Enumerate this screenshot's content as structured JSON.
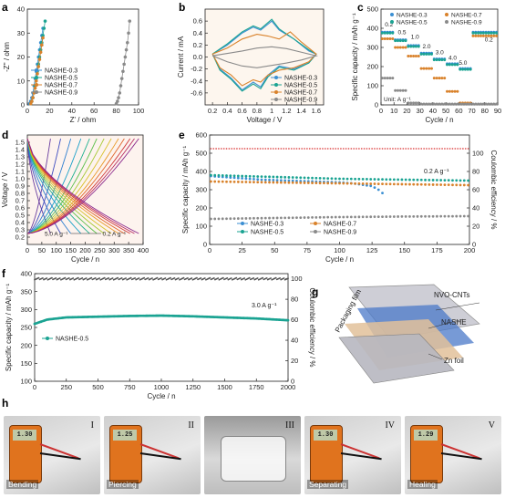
{
  "panel_letters": [
    "a",
    "b",
    "c",
    "d",
    "e",
    "f",
    "g",
    "h"
  ],
  "colors": {
    "s03": "#3b8fd3",
    "s05": "#1aa392",
    "s07": "#d9822b",
    "s09": "#8a8a8a",
    "ce": "#e05555"
  },
  "chart_data": [
    {
      "id": "a",
      "type": "scatter",
      "xlabel": "Z' / ohm",
      "ylabel": "-Z'' / ohm",
      "xlim": [
        0,
        100
      ],
      "ylim": [
        0,
        40
      ],
      "xticks": [
        0,
        20,
        40,
        60,
        80,
        100
      ],
      "yticks": [
        0,
        10,
        20,
        30,
        40
      ],
      "legend": [
        "NASHE-0.3",
        "NASHE-0.5",
        "NASHE-0.7",
        "NASHE-0.9"
      ],
      "series": [
        {
          "name": "NASHE-0.3",
          "x": [
            2,
            3,
            4,
            5,
            6,
            7,
            8,
            9,
            10,
            11,
            12,
            13,
            14
          ],
          "y": [
            0.5,
            1.5,
            3,
            5,
            8,
            11,
            14,
            17,
            20,
            23,
            26,
            29,
            32
          ]
        },
        {
          "name": "NASHE-0.5",
          "x": [
            3,
            4,
            5,
            6,
            7,
            8,
            9,
            10,
            11,
            12,
            13,
            14,
            15,
            16
          ],
          "y": [
            0.5,
            1.5,
            3,
            5,
            8,
            11,
            14,
            17,
            20,
            23,
            26,
            29,
            32,
            35
          ]
        },
        {
          "name": "NASHE-0.7",
          "x": [
            3,
            4,
            5,
            6,
            7,
            8,
            9,
            10,
            11,
            12,
            13,
            14
          ],
          "y": [
            0.5,
            1.5,
            3,
            5,
            7,
            10,
            13,
            16,
            19,
            22,
            25,
            28
          ]
        },
        {
          "name": "NASHE-0.9",
          "x": [
            80,
            81,
            82,
            83,
            84,
            85,
            86,
            87,
            88,
            89,
            90,
            91,
            92
          ],
          "y": [
            0.5,
            1.5,
            3,
            5,
            8,
            11,
            14,
            17,
            20,
            23,
            26,
            30,
            35
          ]
        }
      ]
    },
    {
      "id": "b",
      "type": "line",
      "xlabel": "Voltage / V",
      "ylabel": "Current / mA",
      "xlim": [
        0.1,
        1.7
      ],
      "ylim": [
        -0.8,
        0.8
      ],
      "xticks": [
        0.2,
        0.4,
        0.6,
        0.8,
        1.0,
        1.2,
        1.4,
        1.6
      ],
      "yticks": [
        -0.6,
        -0.4,
        -0.2,
        0.0,
        0.2,
        0.4,
        0.6
      ],
      "legend": [
        "NASHE-0.3",
        "NASHE-0.5",
        "NASHE-0.7",
        "NASHE-0.9"
      ],
      "series": [
        {
          "name": "NASHE-0.3",
          "x": [
            0.2,
            0.4,
            0.6,
            0.75,
            0.85,
            1.0,
            1.1,
            1.3,
            1.5,
            1.6,
            1.5,
            1.3,
            1.1,
            0.95,
            0.85,
            0.75,
            0.6,
            0.45,
            0.3,
            0.2
          ],
          "y": [
            0.05,
            0.2,
            0.4,
            0.5,
            0.45,
            0.6,
            0.45,
            0.3,
            0.1,
            0.05,
            -0.1,
            -0.2,
            -0.15,
            -0.3,
            -0.5,
            -0.42,
            -0.55,
            -0.35,
            -0.2,
            0.05
          ]
        },
        {
          "name": "NASHE-0.5",
          "x": [
            0.2,
            0.4,
            0.6,
            0.75,
            0.85,
            1.0,
            1.1,
            1.3,
            1.5,
            1.6,
            1.5,
            1.3,
            1.1,
            0.95,
            0.85,
            0.75,
            0.6,
            0.45,
            0.3,
            0.2
          ],
          "y": [
            0.05,
            0.22,
            0.42,
            0.52,
            0.47,
            0.63,
            0.47,
            0.3,
            0.12,
            0.05,
            -0.1,
            -0.22,
            -0.17,
            -0.33,
            -0.53,
            -0.45,
            -0.57,
            -0.37,
            -0.22,
            0.05
          ]
        },
        {
          "name": "NASHE-0.7",
          "x": [
            0.2,
            0.4,
            0.6,
            0.8,
            0.95,
            1.1,
            1.25,
            1.4,
            1.55,
            1.6,
            1.5,
            1.3,
            1.1,
            0.95,
            0.85,
            0.75,
            0.6,
            0.45,
            0.3,
            0.2
          ],
          "y": [
            0.05,
            0.15,
            0.3,
            0.38,
            0.35,
            0.3,
            0.42,
            0.25,
            0.1,
            0.05,
            -0.08,
            -0.18,
            -0.22,
            -0.3,
            -0.42,
            -0.38,
            -0.48,
            -0.3,
            -0.18,
            0.05
          ]
        },
        {
          "name": "NASHE-0.9",
          "x": [
            0.2,
            0.4,
            0.6,
            0.8,
            1.0,
            1.2,
            1.4,
            1.6,
            1.4,
            1.2,
            1.0,
            0.8,
            0.6,
            0.4,
            0.2
          ],
          "y": [
            0.02,
            0.06,
            0.1,
            0.15,
            0.17,
            0.14,
            0.08,
            0.02,
            -0.05,
            -0.1,
            -0.14,
            -0.18,
            -0.15,
            -0.08,
            0.02
          ]
        }
      ]
    },
    {
      "id": "c",
      "type": "scatter",
      "xlabel": "Cycle / n",
      "ylabel": "Specific capacity / mAh g⁻¹",
      "xlim": [
        0,
        90
      ],
      "ylim": [
        0,
        500
      ],
      "xticks": [
        0,
        10,
        20,
        30,
        40,
        50,
        60,
        70,
        80,
        90
      ],
      "yticks": [
        0,
        100,
        200,
        300,
        400,
        500
      ],
      "annotations": [
        "0.2",
        "0.5",
        "1.0",
        "2.0",
        "3.0",
        "4.0",
        "5.0",
        "0.2",
        "Unit: A g⁻¹"
      ],
      "legend": [
        "NASHE-0.3",
        "NASHE-0.5",
        "NASHE-0.7",
        "NASHE-0.9"
      ],
      "series": [
        {
          "name": "NASHE-0.3",
          "segments": [
            [
              1,
              10,
              380
            ],
            [
              11,
              20,
              340
            ],
            [
              21,
              30,
              310
            ],
            [
              31,
              40,
              270
            ],
            [
              41,
              50,
              240
            ],
            [
              51,
              60,
              215
            ],
            [
              61,
              70,
              190
            ],
            [
              71,
              90,
              380
            ]
          ]
        },
        {
          "name": "NASHE-0.5",
          "segments": [
            [
              1,
              10,
              375
            ],
            [
              11,
              20,
              335
            ],
            [
              21,
              30,
              305
            ],
            [
              31,
              40,
              265
            ],
            [
              41,
              50,
              235
            ],
            [
              51,
              60,
              210
            ],
            [
              61,
              70,
              185
            ],
            [
              71,
              90,
              375
            ]
          ]
        },
        {
          "name": "NASHE-0.7",
          "segments": [
            [
              1,
              10,
              345
            ],
            [
              11,
              20,
              300
            ],
            [
              21,
              30,
              255
            ],
            [
              31,
              40,
              190
            ],
            [
              41,
              50,
              140
            ],
            [
              51,
              60,
              70
            ],
            [
              61,
              70,
              10
            ],
            [
              71,
              90,
              360
            ]
          ]
        },
        {
          "name": "NASHE-0.9",
          "segments": [
            [
              1,
              10,
              140
            ],
            [
              11,
              20,
              75
            ],
            [
              21,
              30,
              10
            ],
            [
              31,
              40,
              5
            ],
            [
              41,
              50,
              5
            ],
            [
              51,
              60,
              5
            ],
            [
              61,
              70,
              5
            ],
            [
              71,
              90,
              5
            ]
          ]
        }
      ]
    },
    {
      "id": "d",
      "type": "line",
      "xlabel": "Cycle / n",
      "ylabel": "Voltage / V",
      "xlim": [
        0,
        400
      ],
      "ylim": [
        0.1,
        1.6
      ],
      "xticks": [
        0,
        50,
        100,
        150,
        200,
        250,
        300,
        350,
        400
      ],
      "yticks": [
        0.2,
        0.3,
        0.4,
        0.5,
        0.6,
        0.7,
        0.8,
        0.9,
        1.0,
        1.1,
        1.2,
        1.3,
        1.4,
        1.5
      ],
      "annotations": [
        "5.0 A g⁻¹",
        "0.2 A g⁻¹"
      ],
      "curves": [
        {
          "cap": 80
        },
        {
          "cap": 115
        },
        {
          "cap": 150
        },
        {
          "cap": 185
        },
        {
          "cap": 215
        },
        {
          "cap": 240
        },
        {
          "cap": 265
        },
        {
          "cap": 290
        },
        {
          "cap": 315
        },
        {
          "cap": 335
        },
        {
          "cap": 355
        },
        {
          "cap": 370
        },
        {
          "cap": 385
        }
      ]
    },
    {
      "id": "e",
      "type": "scatter",
      "xlabel": "Cycle / n",
      "ylabel": "Specific capacity / mAh g⁻¹",
      "y2label": "Coulombic efficiency / %",
      "xlim": [
        0,
        200
      ],
      "ylim": [
        0,
        600
      ],
      "y2lim": [
        0,
        120
      ],
      "xticks": [
        0,
        25,
        50,
        75,
        100,
        125,
        150,
        175,
        200
      ],
      "yticks": [
        0,
        100,
        200,
        300,
        400,
        500,
        600
      ],
      "y2ticks": [
        0,
        20,
        40,
        60,
        80,
        100
      ],
      "annotations": [
        "0.2 A g⁻¹"
      ],
      "legend": [
        "NASHE-0.3",
        "NASHE-0.7",
        "NASHE-0.5",
        "NASHE-0.9"
      ],
      "series": [
        {
          "name": "NASHE-0.3",
          "x": [
            1,
            20,
            40,
            60,
            80,
            100,
            110,
            120,
            125,
            130,
            135
          ],
          "y": [
            375,
            365,
            355,
            350,
            345,
            340,
            335,
            325,
            320,
            300,
            270
          ]
        },
        {
          "name": "NASHE-0.7",
          "x": [
            1,
            50,
            100,
            150,
            200
          ],
          "y": [
            345,
            340,
            335,
            330,
            325
          ]
        },
        {
          "name": "NASHE-0.5",
          "x": [
            1,
            50,
            100,
            150,
            200
          ],
          "y": [
            380,
            370,
            360,
            355,
            350
          ]
        },
        {
          "name": "NASHE-0.9",
          "x": [
            1,
            50,
            100,
            150,
            200
          ],
          "y": [
            140,
            145,
            150,
            153,
            155
          ]
        },
        {
          "name": "CE",
          "x": [
            1,
            200
          ],
          "y": [
            105,
            105
          ]
        }
      ]
    },
    {
      "id": "f",
      "type": "scatter",
      "xlabel": "Cycle / n",
      "ylabel": "Specific capacity / mAh g⁻¹",
      "y2label": "Coulombic efficiency / %",
      "xlim": [
        0,
        2000
      ],
      "ylim": [
        100,
        400
      ],
      "y2lim": [
        0,
        105
      ],
      "xticks": [
        0,
        250,
        500,
        750,
        1000,
        1250,
        1500,
        1750,
        2000
      ],
      "yticks": [
        100,
        150,
        200,
        250,
        300,
        350,
        400
      ],
      "y2ticks": [
        0,
        20,
        40,
        60,
        80,
        100
      ],
      "annotations": [
        "3.0 A g⁻¹"
      ],
      "legend": [
        "NASHE-0.5"
      ],
      "series": [
        {
          "name": "NASHE-0.5",
          "x": [
            0,
            100,
            250,
            500,
            750,
            1000,
            1250,
            1500,
            1750,
            2000
          ],
          "y": [
            260,
            272,
            278,
            280,
            282,
            283,
            281,
            278,
            275,
            270
          ]
        },
        {
          "name": "CE",
          "x": [
            0,
            2000
          ],
          "y": [
            100,
            100
          ]
        }
      ]
    }
  ],
  "schematic_g": {
    "labels": [
      "Packaging film",
      "NVO-CNTs",
      "NASHE",
      "Zn foil"
    ]
  },
  "photos_h": [
    {
      "numeral": "I",
      "label": "Bending",
      "reading": "1.30"
    },
    {
      "numeral": "II",
      "label": "Piercing",
      "reading": "1.25"
    },
    {
      "numeral": "III",
      "label": ""
    },
    {
      "numeral": "IV",
      "label": "Separating",
      "reading": "1.30"
    },
    {
      "numeral": "V",
      "label": "Healing",
      "reading": "1.29"
    }
  ]
}
